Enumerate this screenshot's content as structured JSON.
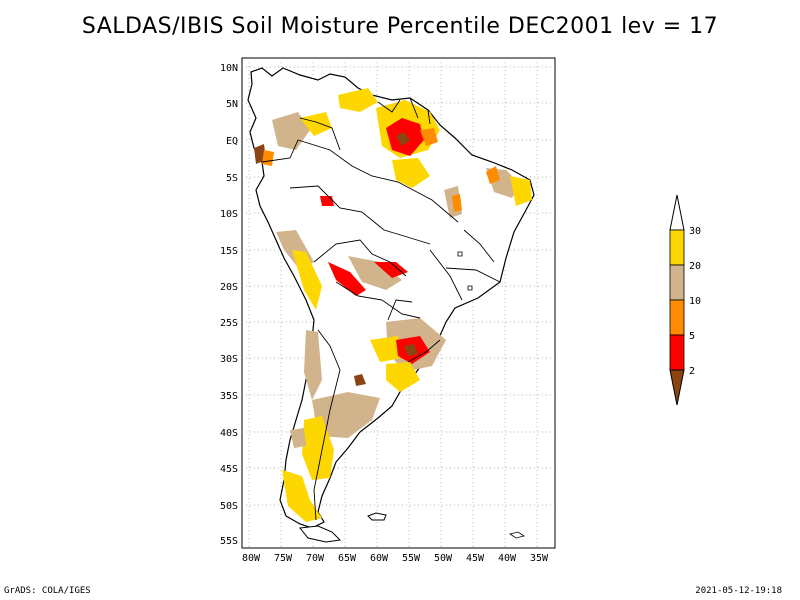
{
  "title": "SALDAS/IBIS Soil Moisture Percentile DEC2001 lev = 17",
  "footer": {
    "left": "GrADS: COLA/IGES",
    "right": "2021-05-12-19:18"
  },
  "map": {
    "lat_labels": [
      "10N",
      "5N",
      "EQ",
      "5S",
      "10S",
      "15S",
      "20S",
      "25S",
      "30S",
      "35S",
      "40S",
      "45S",
      "50S",
      "55S"
    ],
    "lon_labels": [
      "80W",
      "75W",
      "70W",
      "65W",
      "60W",
      "55W",
      "50W",
      "45W",
      "40W",
      "35W"
    ],
    "lon_range": [
      -81,
      -33
    ],
    "lat_range": [
      -56,
      12
    ],
    "grid": true
  },
  "legend": {
    "labels": [
      "30",
      "20",
      "10",
      "5",
      "2"
    ],
    "colors": {
      "above_30": "#ffffff",
      "20_30": "#ffd700",
      "10_20": "#d2b48c",
      "5_10": "#ff8c00",
      "2_5": "#ff0000",
      "below_2": "#8b4513"
    }
  },
  "colors": {
    "yellow": "#ffd700",
    "tan": "#d2b48c",
    "orange": "#ff8c00",
    "red": "#ff0000",
    "brown": "#8b4513"
  }
}
